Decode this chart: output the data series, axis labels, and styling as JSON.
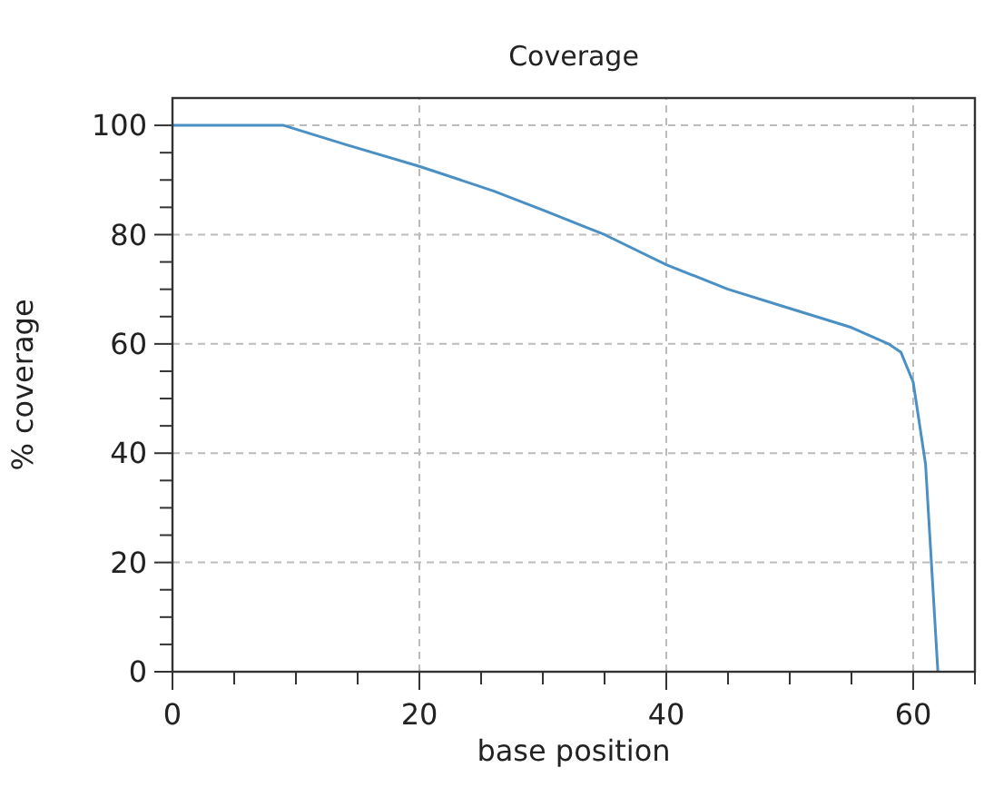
{
  "chart_data": {
    "type": "line",
    "title": "Coverage",
    "xlabel": "base position",
    "ylabel": "% coverage",
    "x": [
      0,
      9,
      14,
      20,
      26,
      30,
      35,
      40,
      45,
      50,
      55,
      58,
      59,
      60,
      61,
      62
    ],
    "series": [
      {
        "color": "#4a90c4",
        "values": [
          100,
          100,
          96.5,
          92.5,
          88,
          84.5,
          80,
          74.5,
          70,
          66.5,
          63,
          60,
          58.5,
          53,
          38,
          0
        ]
      }
    ],
    "xlim": [
      0,
      65
    ],
    "ylim": [
      0,
      105
    ],
    "xticks": [
      0,
      {
        "value": 5,
        "label": null
      },
      {
        "value": 10,
        "label": null
      },
      {
        "value": 15,
        "label": null
      },
      20,
      {
        "value": 25,
        "label": null
      },
      {
        "value": 30,
        "label": null
      },
      {
        "value": 35,
        "label": null
      },
      40,
      {
        "value": 45,
        "label": null
      },
      {
        "value": 50,
        "label": null
      },
      {
        "value": 55,
        "label": null
      },
      60,
      {
        "value": 65,
        "label": null
      }
    ],
    "yticks": [
      0,
      {
        "value": 5,
        "label": null
      },
      {
        "value": 10,
        "label": null
      },
      {
        "value": 15,
        "label": null
      },
      20,
      {
        "value": 25,
        "label": null
      },
      {
        "value": 30,
        "label": null
      },
      {
        "value": 35,
        "label": null
      },
      40,
      {
        "value": 45,
        "label": null
      },
      {
        "value": 50,
        "label": null
      },
      {
        "value": 55,
        "label": null
      },
      60,
      {
        "value": 65,
        "label": null
      },
      {
        "value": 70,
        "label": null
      },
      {
        "value": 75,
        "label": null
      },
      80,
      {
        "value": 85,
        "label": null
      },
      {
        "value": 90,
        "label": null
      },
      {
        "value": 95,
        "label": null
      },
      100
    ],
    "grid": true,
    "line_style": "solid",
    "marker": "none"
  }
}
